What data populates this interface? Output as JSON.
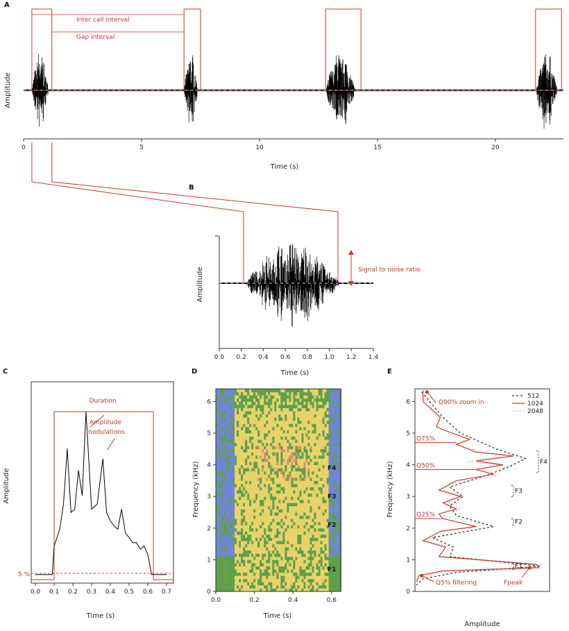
{
  "colors": {
    "accent": "#c0392b",
    "signal": "#000000",
    "spec_low": "#6f86d6",
    "spec_mid": "#5fa04a",
    "spec_high": "#e8d26b",
    "spec_peak": "#e08a70"
  },
  "chart_data": [
    {
      "panel": "A",
      "type": "line",
      "label": "A",
      "xlabel": "Time (s)",
      "ylabel": "Amplitude",
      "xlim": [
        0,
        23
      ],
      "xticks": [
        "0",
        "5",
        "10",
        "15",
        "20"
      ],
      "xtick_values": [
        0,
        5,
        10,
        15,
        20
      ],
      "calls": [
        [
          0.35,
          1.2
        ],
        [
          6.8,
          7.5
        ],
        [
          12.8,
          14.3
        ],
        [
          21.7,
          22.8
        ]
      ],
      "annotations": {
        "inter_call": "Inter call interval",
        "gap": "Gap interval"
      }
    },
    {
      "panel": "B",
      "type": "line",
      "label": "B",
      "xlabel": "Time (s)",
      "ylabel": "Amplitude",
      "xlim": [
        0,
        1.4
      ],
      "xticks": [
        "0.0",
        "0.2",
        "0.4",
        "0.6",
        "0.8",
        "1.0",
        "1.2",
        "1.4"
      ],
      "xtick_values": [
        0,
        0.2,
        0.4,
        0.6,
        0.8,
        1.0,
        1.2,
        1.4
      ],
      "signal": [
        0.23,
        1.1
      ],
      "annotations": {
        "snr": "Signal to noise ratio"
      }
    },
    {
      "panel": "C",
      "type": "line",
      "label": "C",
      "xlabel": "Time (s)",
      "ylabel": "Amplitude",
      "xlim": [
        0,
        0.7
      ],
      "xticks": [
        "0.0",
        "0.1",
        "0.2",
        "0.3",
        "0.4",
        "0.5",
        "0.6",
        "0.7"
      ],
      "xtick_values": [
        0,
        0.1,
        0.2,
        0.3,
        0.4,
        0.5,
        0.6,
        0.7
      ],
      "duration": [
        0.1,
        0.63
      ],
      "threshold_label": "5 %",
      "annotations": {
        "duration": "Duration",
        "am1": "Amplitude",
        "am2": "modulations"
      },
      "envelope": [
        [
          0,
          0.03
        ],
        [
          0.09,
          0.03
        ],
        [
          0.1,
          0.2
        ],
        [
          0.13,
          0.3
        ],
        [
          0.15,
          0.45
        ],
        [
          0.17,
          0.78
        ],
        [
          0.19,
          0.4
        ],
        [
          0.21,
          0.42
        ],
        [
          0.23,
          0.65
        ],
        [
          0.25,
          0.5
        ],
        [
          0.27,
          1.0
        ],
        [
          0.3,
          0.42
        ],
        [
          0.33,
          0.45
        ],
        [
          0.36,
          0.72
        ],
        [
          0.38,
          0.4
        ],
        [
          0.4,
          0.35
        ],
        [
          0.42,
          0.32
        ],
        [
          0.44,
          0.3
        ],
        [
          0.46,
          0.42
        ],
        [
          0.48,
          0.28
        ],
        [
          0.5,
          0.25
        ],
        [
          0.52,
          0.22
        ],
        [
          0.54,
          0.22
        ],
        [
          0.56,
          0.18
        ],
        [
          0.58,
          0.2
        ],
        [
          0.6,
          0.15
        ],
        [
          0.62,
          0.03
        ],
        [
          0.7,
          0.03
        ]
      ]
    },
    {
      "panel": "D",
      "type": "heatmap",
      "label": "D",
      "xlabel": "Time (s)",
      "ylabel": "Frequency (kHz)",
      "xlim": [
        0,
        0.65
      ],
      "ylim": [
        0,
        6.4
      ],
      "xticks": [
        "0.0",
        "0.2",
        "0.4",
        "0.6"
      ],
      "xtick_values": [
        0,
        0.2,
        0.4,
        0.6
      ],
      "yticks": [
        "0",
        "1",
        "2",
        "3",
        "4",
        "5",
        "6"
      ],
      "ytick_values": [
        0,
        1,
        2,
        3,
        4,
        5,
        6
      ],
      "formants": [
        {
          "name": "F1",
          "freq": 0.7
        },
        {
          "name": "F2",
          "freq": 2.1
        },
        {
          "name": "F3",
          "freq": 3.0
        },
        {
          "name": "F4",
          "freq": 3.9
        }
      ]
    },
    {
      "panel": "E",
      "type": "line",
      "label": "E",
      "xlabel": "Amplitude",
      "ylabel": "Frequency (kHz)",
      "ylim": [
        0,
        6.4
      ],
      "legend": "top-right",
      "yticks": [
        "0",
        "1",
        "2",
        "3",
        "4",
        "5",
        "6"
      ],
      "ytick_values": [
        0,
        1,
        2,
        3,
        4,
        5,
        6
      ],
      "series": [
        {
          "name": "512",
          "style": "dotted",
          "points": [
            [
              6.3,
              0.04
            ],
            [
              5.5,
              0.2
            ],
            [
              5.0,
              0.33
            ],
            [
              4.5,
              0.6
            ],
            [
              4.2,
              0.82
            ],
            [
              3.95,
              0.7
            ],
            [
              3.7,
              0.55
            ],
            [
              3.3,
              0.25
            ],
            [
              3.0,
              0.35
            ],
            [
              2.7,
              0.25
            ],
            [
              2.4,
              0.3
            ],
            [
              2.05,
              0.58
            ],
            [
              1.7,
              0.12
            ],
            [
              1.4,
              0.28
            ],
            [
              1.1,
              0.25
            ],
            [
              0.8,
              0.93
            ],
            [
              0.6,
              0.3
            ],
            [
              0.4,
              0.05
            ],
            [
              0.2,
              0.0
            ]
          ]
        },
        {
          "name": "1024",
          "style": "solid",
          "points": [
            [
              6.35,
              0.05
            ],
            [
              6.0,
              0.05
            ],
            [
              5.5,
              0.18
            ],
            [
              5.2,
              0.15
            ],
            [
              5.0,
              0.27
            ],
            [
              4.8,
              0.4
            ],
            [
              4.65,
              0.3
            ],
            [
              4.4,
              0.45
            ],
            [
              4.28,
              0.73
            ],
            [
              4.12,
              0.45
            ],
            [
              4.0,
              0.65
            ],
            [
              3.85,
              0.45
            ],
            [
              3.7,
              0.58
            ],
            [
              3.5,
              0.3
            ],
            [
              3.2,
              0.17
            ],
            [
              3.0,
              0.33
            ],
            [
              2.8,
              0.2
            ],
            [
              2.6,
              0.3
            ],
            [
              2.45,
              0.17
            ],
            [
              2.3,
              0.2
            ],
            [
              2.05,
              0.45
            ],
            [
              1.9,
              0.18
            ],
            [
              1.6,
              0.05
            ],
            [
              1.4,
              0.22
            ],
            [
              1.1,
              0.17
            ],
            [
              0.85,
              0.9
            ],
            [
              0.75,
              0.92
            ],
            [
              0.65,
              0.2
            ],
            [
              0.5,
              0.02
            ],
            [
              0.3,
              0.0
            ]
          ]
        },
        {
          "name": "2048",
          "style": "dashed-light",
          "points": [
            [
              6.3,
              0.06
            ],
            [
              5.6,
              0.14
            ],
            [
              5.3,
              0.2
            ],
            [
              5.0,
              0.24
            ],
            [
              4.75,
              0.36
            ],
            [
              4.5,
              0.4
            ],
            [
              4.3,
              0.68
            ],
            [
              4.1,
              0.38
            ],
            [
              3.95,
              0.72
            ],
            [
              3.8,
              0.5
            ],
            [
              3.65,
              0.6
            ],
            [
              3.4,
              0.26
            ],
            [
              3.2,
              0.2
            ],
            [
              3.0,
              0.36
            ],
            [
              2.85,
              0.24
            ],
            [
              2.6,
              0.33
            ],
            [
              2.4,
              0.2
            ],
            [
              2.1,
              0.5
            ],
            [
              1.9,
              0.2
            ],
            [
              1.6,
              0.08
            ],
            [
              1.4,
              0.25
            ],
            [
              1.1,
              0.2
            ],
            [
              0.85,
              0.95
            ],
            [
              0.7,
              0.85
            ],
            [
              0.6,
              0.15
            ],
            [
              0.4,
              0.01
            ]
          ]
        }
      ],
      "quantiles": [
        {
          "label": "Q75%",
          "freq": 4.7,
          "amp": 0.3
        },
        {
          "label": "Q50%",
          "freq": 3.85,
          "amp": 0.45
        },
        {
          "label": "Q25%",
          "freq": 2.3,
          "amp": 0.2
        }
      ],
      "markers": {
        "q90": {
          "label": "Q90% zoom in",
          "freq": 6.3,
          "amp": 0.08
        },
        "q5": {
          "label": "Q5% filtering",
          "freq": 0.5,
          "amp": 0.04
        },
        "fpeak": {
          "label": "Fpeak",
          "freq": 0.75,
          "amp": 0.85
        }
      },
      "formants": [
        {
          "name": "F1",
          "lo": 0.7,
          "hi": 0.9
        },
        {
          "name": "F2",
          "lo": 2.1,
          "hi": 2.3
        },
        {
          "name": "F3",
          "lo": 3.0,
          "hi": 3.35
        },
        {
          "name": "F4",
          "lo": 3.75,
          "hi": 4.45
        }
      ]
    }
  ]
}
